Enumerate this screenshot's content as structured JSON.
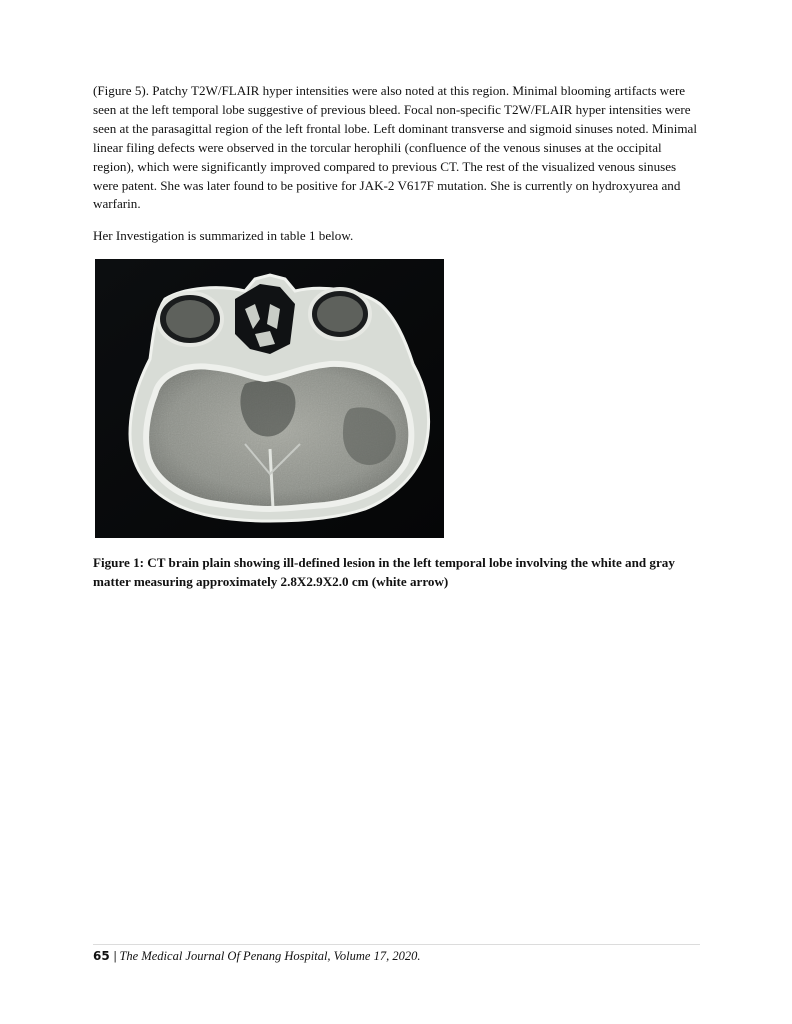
{
  "body_paragraph": "(Figure 5). Patchy T2W/FLAIR hyper intensities were also noted at this region.  Minimal blooming artifacts were seen at the left temporal lobe suggestive of previous bleed. Focal non-specific T2W/FLAIR hyper intensities were seen at the parasagittal region of the left frontal lobe. Left dominant transverse and sigmoid sinuses noted. Minimal linear filing defects were observed in the torcular herophili (confluence of the venous sinuses at the occipital region), which were significantly improved compared to previous CT. The rest of the visualized venous sinuses were patent. She was later found to be positive for JAK-2 V617F mutation. She is currently on hydroxyurea and warfarin.",
  "intro_line": "Her Investigation is summarized in table 1 below.",
  "figure": {
    "caption": "Figure 1: CT brain plain showing ill-defined lesion in the left temporal lobe involving the white and gray matter measuring approximately 2.8X2.9X2.0 cm (white arrow)"
  },
  "footer": {
    "page_number": "65",
    "separator": "|",
    "journal": "The Medical Journal Of Penang Hospital, Volume 17, 2020."
  }
}
